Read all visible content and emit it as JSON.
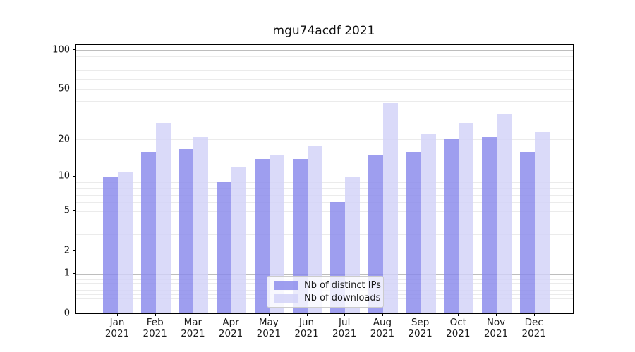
{
  "title": "mgu74acdf 2021",
  "colors": {
    "ips_bar": "#8989ec",
    "downloads_bar": "#d2d2f8",
    "bar_alpha": 0.82,
    "ips_bar_solid": "#a1a1f0",
    "downloads_bar_solid": "#dcdcfa",
    "major_grid": "#bdbdbd",
    "minor_grid": "#ebebeb",
    "axis": "#000000",
    "text": "#1a1a1a",
    "legend_border": "#cccccc"
  },
  "legend": {
    "items": [
      {
        "label": "Nb of distinct IPs",
        "color_key": "ips_bar"
      },
      {
        "label": "Nb of downloads",
        "color_key": "downloads_bar"
      }
    ]
  },
  "chart_data": {
    "type": "bar",
    "title": "mgu74acdf 2021",
    "categories": [
      "Jan",
      "Feb",
      "Mar",
      "Apr",
      "May",
      "Jun",
      "Jul",
      "Aug",
      "Sep",
      "Oct",
      "Nov",
      "Dec"
    ],
    "x_year": "2021",
    "series": [
      {
        "name": "Nb of distinct IPs",
        "values": [
          10,
          16,
          17,
          9,
          14,
          14,
          6,
          15,
          16,
          20,
          21,
          16
        ]
      },
      {
        "name": "Nb of downloads",
        "values": [
          11,
          27,
          21,
          12,
          15,
          18,
          10,
          39,
          22,
          27,
          32,
          23
        ]
      }
    ],
    "xlabel": "",
    "ylabel": "",
    "yscale": "log10(value+1), zero shown at baseline",
    "ylim": [
      0,
      109
    ],
    "y_tick_values": [
      0,
      1,
      2,
      5,
      10,
      20,
      50,
      100
    ],
    "y_tick_labels": [
      "0",
      "1",
      "2",
      "5",
      "10",
      "20",
      "50",
      "100"
    ],
    "grid": {
      "shown": true,
      "major_values": [
        1,
        10,
        100
      ],
      "minor_values": [
        0.2,
        0.3,
        0.4,
        0.5,
        0.6,
        0.7,
        0.8,
        0.9,
        2,
        3,
        4,
        5,
        6,
        7,
        8,
        9,
        20,
        30,
        40,
        50,
        60,
        70,
        80,
        90
      ]
    },
    "legend_position": "lower center"
  }
}
